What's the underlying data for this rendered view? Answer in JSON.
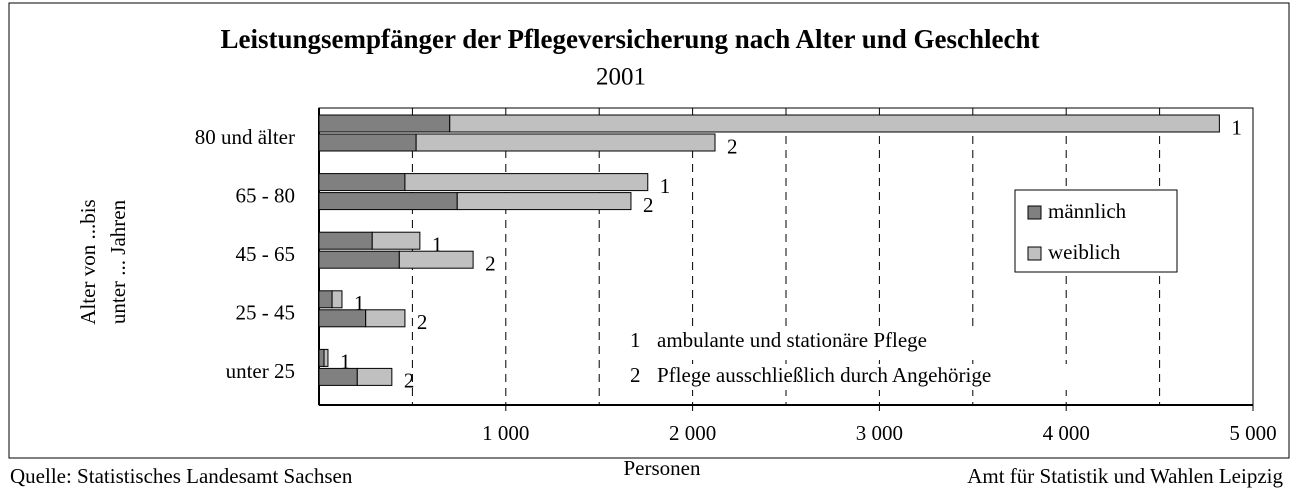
{
  "chart_data": {
    "type": "stacked_grouped_hbar",
    "title": "Leistungsempfänger der Pflegeversicherung nach Alter und Geschlecht",
    "subtitle": "2001",
    "x_label": "Personen",
    "y_label": [
      "Alter von ...bis",
      "unter ... Jahren"
    ],
    "categories": [
      "80 und älter",
      "65 - 80",
      "45 - 65",
      "25 - 45",
      "unter 25"
    ],
    "bar_labels": [
      "1",
      "2"
    ],
    "series": [
      {
        "name": "männlich",
        "color": "#808080",
        "values": [
          [
            700,
            520
          ],
          [
            460,
            740
          ],
          [
            285,
            430
          ],
          [
            70,
            250
          ],
          [
            27,
            205
          ]
        ]
      },
      {
        "name": "weiblich",
        "color": "#c0c0c0",
        "values": [
          [
            4120,
            1600
          ],
          [
            1300,
            930
          ],
          [
            255,
            395
          ],
          [
            53,
            210
          ],
          [
            21,
            185
          ]
        ]
      }
    ],
    "xlim": [
      0,
      5000
    ],
    "xticks": [
      {
        "value": 1000,
        "label": "1 000"
      },
      {
        "value": 2000,
        "label": "2 000"
      },
      {
        "value": 3000,
        "label": "3 000"
      },
      {
        "value": 4000,
        "label": "4 000"
      },
      {
        "value": 5000,
        "label": "5 000"
      }
    ],
    "xgrid_minor": [
      500,
      1500,
      2500,
      3500,
      4500
    ],
    "grid": true,
    "legend": "right",
    "notes": [
      {
        "key": "1",
        "text": "ambulante und stationäre Pflege"
      },
      {
        "key": "2",
        "text": "Pflege ausschließlich durch Angehörige"
      }
    ],
    "source_left": "Quelle: Statistisches Landesamt Sachsen",
    "source_right": "Amt für Statistik und Wahlen Leipzig"
  }
}
